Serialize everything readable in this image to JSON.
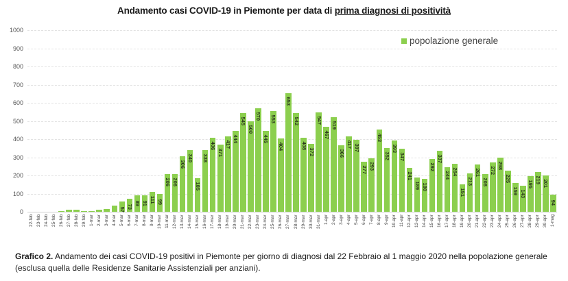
{
  "title": {
    "prefix": "Andamento casi COVID-19 in Piemonte per data di ",
    "underlined": "prima diagnosi di positività"
  },
  "legend": {
    "label": "popolazione generale",
    "color": "#8ccf4e"
  },
  "caption": {
    "bold": "Grafico 2.",
    "text": " Andamento dei casi COVID-19 positivi in Piemonte per giorno di diagnosi dal 22 Febbraio al 1 maggio 2020 nella popolazione generale (esclusa quella delle Residenze Sanitarie Assistenziali per anziani)."
  },
  "chart_data": {
    "type": "bar",
    "title": "Andamento casi COVID-19 in Piemonte per data di prima diagnosi di positività",
    "xlabel": "",
    "ylabel": "",
    "ylim": [
      0,
      1000
    ],
    "yticks": [
      0,
      100,
      200,
      300,
      400,
      500,
      600,
      700,
      800,
      900,
      1000
    ],
    "grid": true,
    "legend_position": "top-right",
    "categories": [
      "22-feb",
      "23-feb",
      "24-feb",
      "25-feb",
      "26-feb",
      "27-feb",
      "28-feb",
      "29-feb",
      "1-mar",
      "2-mar",
      "3-mar",
      "4-mar",
      "5-mar",
      "6-mar",
      "7-mar",
      "8-mar",
      "9-mar",
      "10-mar",
      "11-mar",
      "12-mar",
      "13-mar",
      "14-mar",
      "15-mar",
      "16-mar",
      "17-mar",
      "18-mar",
      "19-mar",
      "20-mar",
      "21-mar",
      "22-mar",
      "23-mar",
      "24-mar",
      "25-mar",
      "26-mar",
      "27-mar",
      "28-mar",
      "29-mar",
      "30-mar",
      "31-mar",
      "1-apr",
      "2-apr",
      "3-apr",
      "4-apr",
      "5-apr",
      "6-apr",
      "7-apr",
      "8-apr",
      "9-apr",
      "10-apr",
      "11-apr",
      "12-apr",
      "13-apr",
      "14-apr",
      "15-apr",
      "16-apr",
      "17-apr",
      "18-apr",
      "19-apr",
      "20-apr",
      "21-apr",
      "22-apr",
      "23-apr",
      "24-apr",
      "25-apr",
      "26-apr",
      "27-apr",
      "28-apr",
      "29-apr",
      "30-apr",
      "1-mag"
    ],
    "series": [
      {
        "name": "popolazione generale",
        "color": "#8ccf4e",
        "values": [
          0,
          0,
          0,
          0,
          1,
          12,
          13,
          4,
          2,
          10,
          17,
          33,
          57,
          73,
          89,
          91,
          111,
          99,
          206,
          206,
          306,
          340,
          185,
          338,
          406,
          371,
          417,
          444,
          545,
          500,
          570,
          445,
          553,
          404,
          653,
          542,
          408,
          372,
          547,
          467,
          519,
          366,
          417,
          397,
          277,
          293,
          453,
          352,
          393,
          347,
          241,
          189,
          180,
          292,
          337,
          244,
          264,
          151,
          213,
          261,
          208,
          272,
          298,
          225,
          159,
          143,
          195,
          219,
          201,
          94
        ],
        "labeled_from_index": 12
      }
    ]
  }
}
